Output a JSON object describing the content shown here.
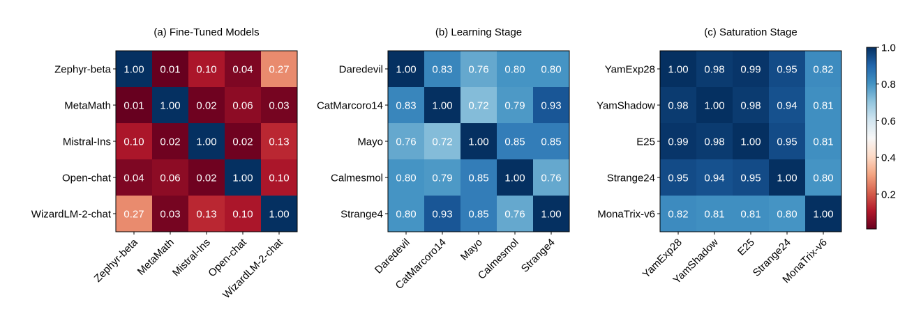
{
  "chart_data": [
    {
      "type": "heatmap",
      "title": "(a) Fine-Tuned Models",
      "rows": [
        "Zephyr-beta",
        "MetaMath",
        "Mistral-Ins",
        "Open-chat",
        "WizardLM-2-chat"
      ],
      "cols": [
        "Zephyr-beta",
        "MetaMath",
        "Mistral-Ins",
        "Open-chat",
        "WizardLM-2-chat"
      ],
      "values": [
        [
          1.0,
          0.01,
          0.1,
          0.04,
          0.27
        ],
        [
          0.01,
          1.0,
          0.02,
          0.06,
          0.03
        ],
        [
          0.1,
          0.02,
          1.0,
          0.02,
          0.13
        ],
        [
          0.04,
          0.06,
          0.02,
          1.0,
          0.1
        ],
        [
          0.27,
          0.03,
          0.13,
          0.1,
          1.0
        ]
      ],
      "value_labels": [
        [
          "1.00",
          "0.01",
          "0.10",
          "0.04",
          "0.27"
        ],
        [
          "0.01",
          "1.00",
          "0.02",
          "0.06",
          "0.03"
        ],
        [
          "0.10",
          "0.02",
          "1.00",
          "0.02",
          "0.13"
        ],
        [
          "0.04",
          "0.06",
          "0.02",
          "1.00",
          "0.10"
        ],
        [
          "0.27",
          "0.03",
          "0.13",
          "0.10",
          "1.00"
        ]
      ]
    },
    {
      "type": "heatmap",
      "title": "(b) Learning Stage",
      "rows": [
        "Daredevil",
        "CatMarcoro14",
        "Mayo",
        "Calmesmol",
        "Strange4"
      ],
      "cols": [
        "Daredevil",
        "CatMarcoro14",
        "Mayo",
        "Calmesmol",
        "Strange4"
      ],
      "values": [
        [
          1.0,
          0.83,
          0.76,
          0.8,
          0.8
        ],
        [
          0.83,
          1.0,
          0.72,
          0.79,
          0.93
        ],
        [
          0.76,
          0.72,
          1.0,
          0.85,
          0.85
        ],
        [
          0.8,
          0.79,
          0.85,
          1.0,
          0.76
        ],
        [
          0.8,
          0.93,
          0.85,
          0.76,
          1.0
        ]
      ],
      "value_labels": [
        [
          "1.00",
          "0.83",
          "0.76",
          "0.80",
          "0.80"
        ],
        [
          "0.83",
          "1.00",
          "0.72",
          "0.79",
          "0.93"
        ],
        [
          "0.76",
          "0.72",
          "1.00",
          "0.85",
          "0.85"
        ],
        [
          "0.80",
          "0.79",
          "0.85",
          "1.00",
          "0.76"
        ],
        [
          "0.80",
          "0.93",
          "0.85",
          "0.76",
          "1.00"
        ]
      ]
    },
    {
      "type": "heatmap",
      "title": "(c) Saturation Stage",
      "rows": [
        "YamExp28",
        "YamShadow",
        "E25",
        "Strange24",
        "MonaTrix-v6"
      ],
      "cols": [
        "YamExp28",
        "YamShadow",
        "E25",
        "Strange24",
        "MonaTrix-v6"
      ],
      "values": [
        [
          1.0,
          0.98,
          0.99,
          0.95,
          0.82
        ],
        [
          0.98,
          1.0,
          0.98,
          0.94,
          0.81
        ],
        [
          0.99,
          0.98,
          1.0,
          0.95,
          0.81
        ],
        [
          0.95,
          0.94,
          0.95,
          1.0,
          0.8
        ],
        [
          0.82,
          0.81,
          0.81,
          0.8,
          1.0
        ]
      ],
      "value_labels": [
        [
          "1.00",
          "0.98",
          "0.99",
          "0.95",
          "0.82"
        ],
        [
          "0.98",
          "1.00",
          "0.98",
          "0.94",
          "0.81"
        ],
        [
          "0.99",
          "0.98",
          "1.00",
          "0.95",
          "0.81"
        ],
        [
          "0.95",
          "0.94",
          "0.95",
          "1.00",
          "0.80"
        ],
        [
          "0.82",
          "0.81",
          "0.81",
          "0.80",
          "1.00"
        ]
      ]
    }
  ],
  "colorbar": {
    "colormap": "RdBu",
    "range": [
      0.01,
      1.0
    ],
    "ticks": [
      1.0,
      0.8,
      0.6,
      0.4,
      0.2
    ],
    "tick_labels": [
      "1.0",
      "0.8",
      "0.6",
      "0.4",
      "0.2"
    ],
    "low_color": "#67001f",
    "mid_color": "#f7f7f7",
    "high_color": "#053061"
  }
}
